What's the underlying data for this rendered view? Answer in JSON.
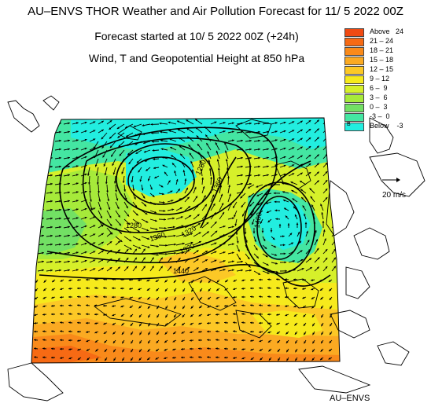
{
  "header": {
    "title": "AU–ENVS THOR Weather and Air Pollution Forecast for 11/ 5 2022  00Z",
    "started": "Forecast started at 10/ 5 2022  00Z (+24h)",
    "variable": "Wind, T and Geopotential Height at 850 hPa"
  },
  "legend": [
    {
      "label": "Above   24",
      "color": "#f04a12"
    },
    {
      "label": "21 – 24",
      "color": "#f66a14"
    },
    {
      "label": "18 – 21",
      "color": "#f98a1a"
    },
    {
      "label": "15 – 18",
      "color": "#fbaa22"
    },
    {
      "label": "12 – 15",
      "color": "#fcc826"
    },
    {
      "label": "9 – 12",
      "color": "#f6ea1c"
    },
    {
      "label": "6 –  9",
      "color": "#d6f02a"
    },
    {
      "label": "3 –  6",
      "color": "#a6ea3a"
    },
    {
      "label": "0 –  3",
      "color": "#72e064"
    },
    {
      "label": "-3 –  0",
      "color": "#44e6a2"
    },
    {
      "label": "Below    -3",
      "color": "#22eee0"
    }
  ],
  "legend_mark": "B",
  "vector_ref": {
    "label": "20 m/s"
  },
  "contours": {
    "labels": [
      "1280",
      "1360",
      "1280",
      "1360",
      "1320",
      "1400",
      "1320",
      "1440",
      "1480",
      "1520"
    ]
  },
  "footer": {
    "credit": "AU–ENVS"
  }
}
